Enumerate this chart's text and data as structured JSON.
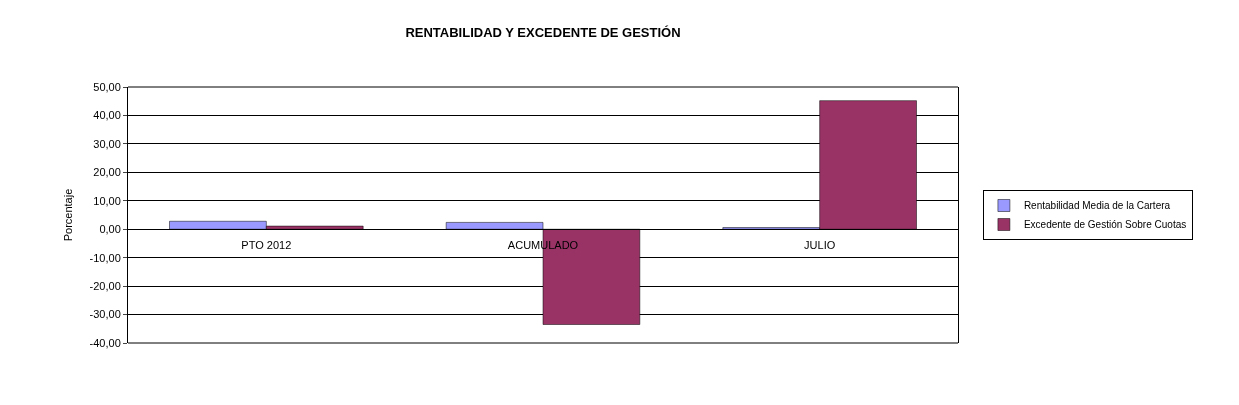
{
  "chart_data": {
    "type": "bar",
    "title": "RENTABILIDAD Y EXCEDENTE DE GESTIÓN",
    "ylabel": "Porcentaje",
    "categories": [
      "PTO 2012",
      "ACUMULADO",
      "JULIO"
    ],
    "series": [
      {
        "name": "Rentabilidad Media de la Cartera",
        "color": "#9999ff",
        "values": [
          2.8,
          2.4,
          0.6
        ]
      },
      {
        "name": "Excedente de Gestión Sobre Cuotas",
        "color": "#993366",
        "values": [
          1.1,
          -33.5,
          45.2
        ]
      }
    ],
    "ylim": [
      -40,
      50
    ],
    "yticks": [
      {
        "value": -40,
        "label": "-40,00"
      },
      {
        "value": -30,
        "label": "-30,00"
      },
      {
        "value": -20,
        "label": "-20,00"
      },
      {
        "value": -10,
        "label": "-10,00"
      },
      {
        "value": 0,
        "label": "0,00"
      },
      {
        "value": 10,
        "label": "10,00"
      },
      {
        "value": 20,
        "label": "20,00"
      },
      {
        "value": 30,
        "label": "30,00"
      },
      {
        "value": 40,
        "label": "40,00"
      },
      {
        "value": 50,
        "label": "50,00"
      }
    ],
    "grid": "y",
    "legend": "right"
  }
}
